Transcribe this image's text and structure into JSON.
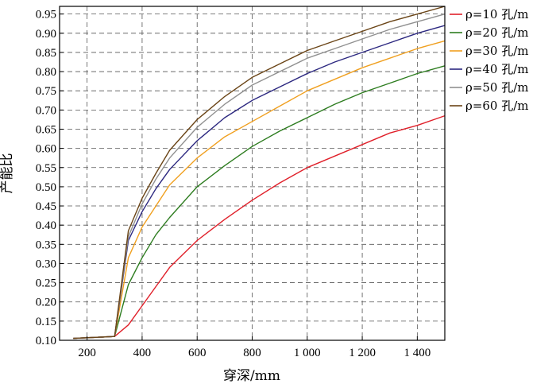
{
  "chart_data": {
    "type": "line",
    "title": "",
    "xlabel": "穿深/mm",
    "ylabel": "产能比",
    "xlim": [
      100,
      1500
    ],
    "ylim": [
      0.1,
      0.97
    ],
    "xticks": [
      200,
      400,
      600,
      800,
      1000,
      1200,
      1400
    ],
    "xtick_labels": [
      "200",
      "400",
      "600",
      "800",
      "1 000",
      "1 200",
      "1 400"
    ],
    "yticks": [
      0.1,
      0.15,
      0.2,
      0.25,
      0.3,
      0.35,
      0.4,
      0.45,
      0.5,
      0.55,
      0.6,
      0.65,
      0.7,
      0.75,
      0.8,
      0.85,
      0.9,
      0.95
    ],
    "ytick_labels": [
      "0.10",
      "0.15",
      "0.20",
      "0.25",
      "0.30",
      "0.35",
      "0.40",
      "0.45",
      "0.50",
      "0.55",
      "0.60",
      "0.65",
      "0.70",
      "0.75",
      "0.80",
      "0.85",
      "0.90",
      "0.95"
    ],
    "grid": true,
    "legend_position": "top-right",
    "x": [
      150,
      300,
      350,
      400,
      450,
      500,
      600,
      700,
      800,
      900,
      1000,
      1100,
      1200,
      1300,
      1400,
      1500
    ],
    "series": [
      {
        "name": "ρ=10 孔/m",
        "color": "#e0202a",
        "values": [
          0.105,
          0.11,
          0.14,
          0.19,
          0.24,
          0.29,
          0.36,
          0.415,
          0.465,
          0.51,
          0.55,
          0.58,
          0.61,
          0.64,
          0.66,
          0.685
        ]
      },
      {
        "name": "ρ=20 孔/m",
        "color": "#2e7d20",
        "values": [
          0.105,
          0.11,
          0.245,
          0.315,
          0.375,
          0.42,
          0.5,
          0.555,
          0.605,
          0.645,
          0.68,
          0.715,
          0.745,
          0.77,
          0.795,
          0.815
        ]
      },
      {
        "name": "ρ=30 孔/m",
        "color": "#f0a020",
        "values": [
          0.105,
          0.11,
          0.315,
          0.395,
          0.45,
          0.505,
          0.575,
          0.63,
          0.67,
          0.71,
          0.75,
          0.78,
          0.81,
          0.835,
          0.86,
          0.88
        ]
      },
      {
        "name": "ρ=40 孔/m",
        "color": "#2c2880",
        "values": [
          0.105,
          0.11,
          0.36,
          0.435,
          0.495,
          0.545,
          0.62,
          0.68,
          0.725,
          0.76,
          0.795,
          0.825,
          0.85,
          0.875,
          0.9,
          0.92
        ]
      },
      {
        "name": "ρ=50 孔/m",
        "color": "#909090",
        "values": [
          0.105,
          0.11,
          0.37,
          0.455,
          0.52,
          0.575,
          0.655,
          0.715,
          0.765,
          0.8,
          0.835,
          0.86,
          0.885,
          0.91,
          0.93,
          0.95
        ]
      },
      {
        "name": "ρ=60 孔/m",
        "color": "#6a4416",
        "values": [
          0.105,
          0.11,
          0.385,
          0.47,
          0.535,
          0.595,
          0.675,
          0.735,
          0.785,
          0.82,
          0.855,
          0.88,
          0.905,
          0.93,
          0.95,
          0.97
        ]
      }
    ]
  }
}
